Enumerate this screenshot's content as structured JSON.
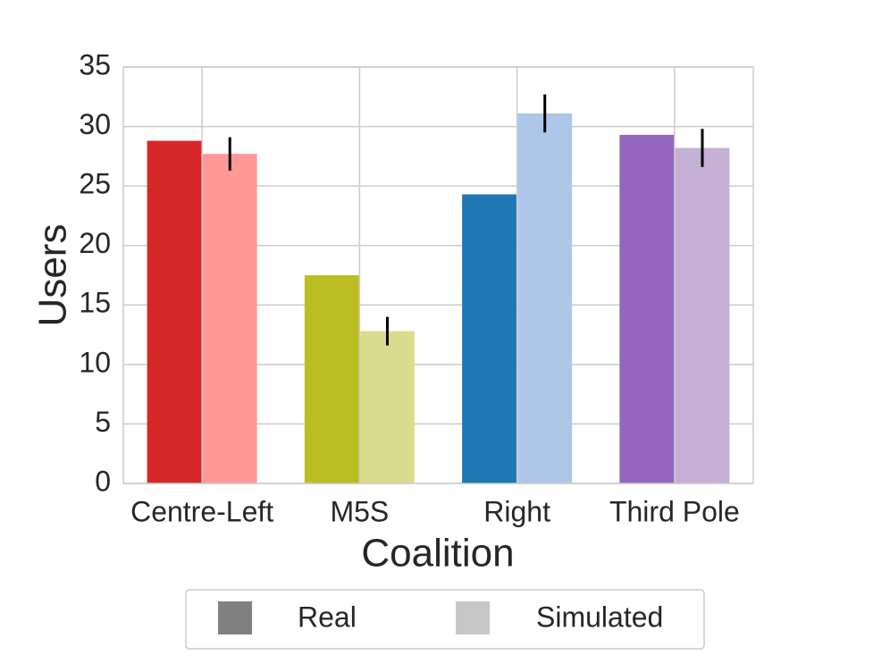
{
  "chart_data": {
    "type": "bar",
    "title": "",
    "xlabel": "Coalition",
    "ylabel": "Users",
    "categories": [
      "Centre-Left",
      "M5S",
      "Right",
      "Third Pole"
    ],
    "series": [
      {
        "name": "Real",
        "values": [
          28.8,
          17.5,
          24.3,
          29.3
        ],
        "errors": [
          null,
          null,
          null,
          null
        ],
        "colors": [
          "#d62728",
          "#bcbd22",
          "#1f77b4",
          "#9467bd"
        ]
      },
      {
        "name": "Simulated",
        "values": [
          27.7,
          12.8,
          31.1,
          28.2
        ],
        "errors": [
          1.4,
          1.2,
          1.6,
          1.6
        ],
        "colors": [
          "#ff9896",
          "#dbdb8d",
          "#aec7e8",
          "#c5b0d5"
        ]
      }
    ],
    "ylim": [
      0,
      35
    ],
    "yticks": [
      0,
      5,
      10,
      15,
      20,
      25,
      30,
      35
    ],
    "grid": true,
    "legend": {
      "placement": "bottom-center",
      "entries": [
        {
          "label": "Real",
          "color": "#808080"
        },
        {
          "label": "Simulated",
          "color": "#c7c7c7"
        }
      ]
    }
  }
}
